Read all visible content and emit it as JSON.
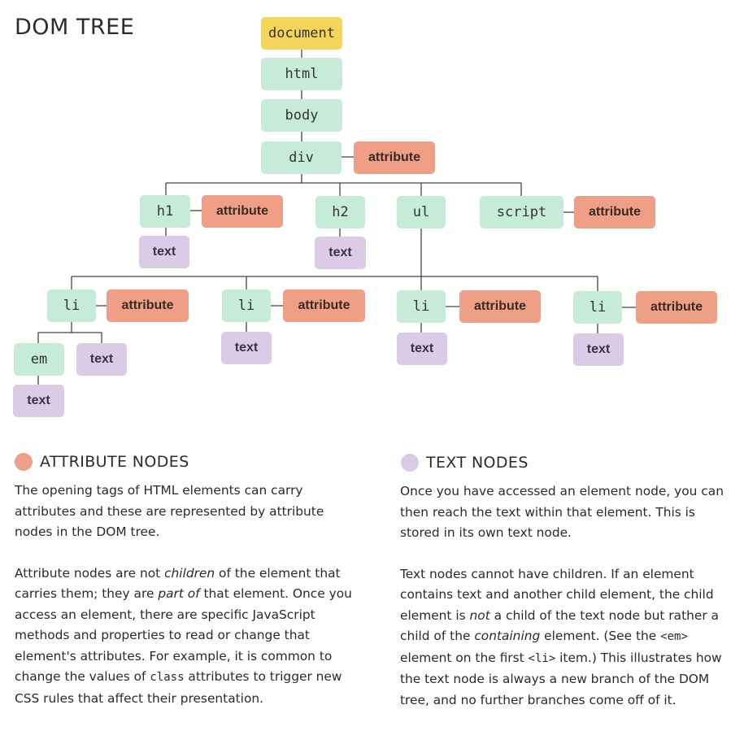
{
  "title": "DOM TREE",
  "colors": {
    "element": "#c6ecd9",
    "document": "#f5d45a",
    "attribute": "#ee9f85",
    "text": "#dccbe6"
  },
  "nodes": {
    "document": "document",
    "html": "html",
    "body": "body",
    "div": "div",
    "div_attr": "attribute",
    "h1": "h1",
    "h1_attr": "attribute",
    "h1_text": "text",
    "h2": "h2",
    "h2_text": "text",
    "ul": "ul",
    "script": "script",
    "script_attr": "attribute",
    "li1": "li",
    "li1_attr": "attribute",
    "em": "em",
    "em_text": "text",
    "li1_text": "text",
    "li2": "li",
    "li2_attr": "attribute",
    "li2_text": "text",
    "li3": "li",
    "li3_attr": "attribute",
    "li3_text": "text",
    "li4": "li",
    "li4_attr": "attribute",
    "li4_text": "text"
  },
  "attribute_section": {
    "heading": "ATTRIBUTE NODES",
    "p1": "The opening tags of HTML elements can carry attributes and these are represented by attribute nodes in the DOM tree.",
    "p2_a": "Attribute nodes are not ",
    "p2_em1": "children",
    "p2_b": " of the element that carries them; they are ",
    "p2_em2": "part of",
    "p2_c": " that element. Once you access an element, there are specific JavaScript methods and properties to read or change that element's attributes. For example, it is common to change the values of ",
    "p2_code": "class",
    "p2_d": " attributes to trigger new CSS rules that affect their presentation."
  },
  "text_section": {
    "heading": "TEXT NODES",
    "p1": "Once you have accessed an element node, you can then reach the text within that element. This is stored in its own text node.",
    "p2_a": "Text nodes cannot have children. If an element contains text and another child element, the child element is ",
    "p2_em1": "not",
    "p2_b": " a child of the text node but rather a child of the ",
    "p2_em2": "containing",
    "p2_c": " element. (See the ",
    "p2_code1": "<em>",
    "p2_d": " element on the first ",
    "p2_code2": "<li>",
    "p2_e": " item.) This illustrates how the text node is always a new branch of the DOM tree, and no further branches come off of it."
  }
}
